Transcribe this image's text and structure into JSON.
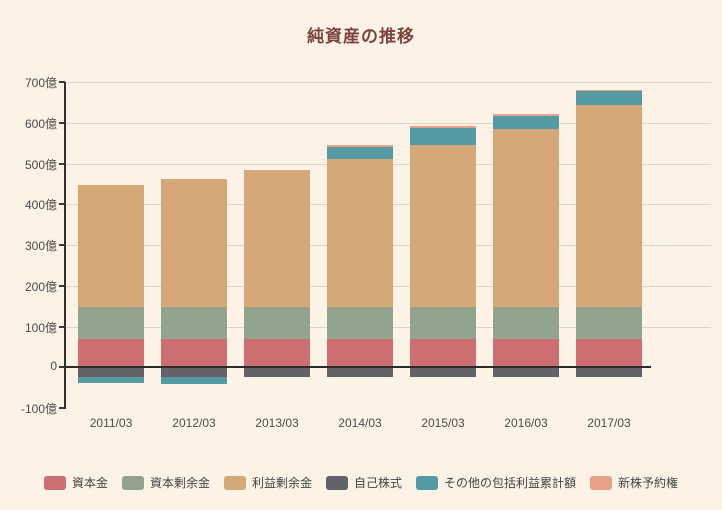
{
  "title": "純資産の推移",
  "palette": {
    "background": "#fcf3e6",
    "title_color": "#7d443c",
    "gridline": "#ddd5c8",
    "axis_line": "#2f2f2f",
    "zero_line": "#2b2b2b",
    "tick_mark": "#3a3a3a",
    "tick_label": "#4c4c4c",
    "legend_text": "#444444"
  },
  "chart_data": {
    "type": "bar",
    "stacked": true,
    "title": "純資産の推移",
    "unit": "億円",
    "categories": [
      "2011/03",
      "2012/03",
      "2013/03",
      "2014/03",
      "2015/03",
      "2016/03",
      "2017/03"
    ],
    "series": [
      {
        "key": "capital",
        "name": "資本金",
        "color": "#cd6e72",
        "values": [
          70,
          70,
          70,
          70,
          70,
          70,
          70
        ]
      },
      {
        "key": "capital-surplus",
        "name": "資本剰余金",
        "color": "#93a48e",
        "values": [
          78,
          78,
          78,
          78,
          78,
          78,
          78
        ]
      },
      {
        "key": "retained",
        "name": "利益剰余金",
        "color": "#d5a877",
        "values": [
          299,
          314,
          337,
          362,
          397,
          437,
          496
        ]
      },
      {
        "key": "treasury",
        "name": "自己株式",
        "color": "#626269",
        "values": [
          -23,
          -23,
          -25,
          -23,
          -24,
          -24,
          -24
        ]
      },
      {
        "key": "oci",
        "name": "その他の包括利益累計額",
        "color": "#549aa2",
        "values": [
          -16,
          -18,
          0,
          31,
          41,
          31,
          33
        ]
      },
      {
        "key": "rights",
        "name": "新株予約権",
        "color": "#e9a18a",
        "values": [
          0,
          0,
          0,
          4,
          6,
          5,
          4
        ]
      }
    ],
    "ylim": [
      -100,
      700
    ],
    "y_ticks": [
      {
        "label": "700億",
        "value": 700
      },
      {
        "label": "600億",
        "value": 600
      },
      {
        "label": "500億",
        "value": 500
      },
      {
        "label": "400億",
        "value": 400
      },
      {
        "label": "300億",
        "value": 300
      },
      {
        "label": "200億",
        "value": 200
      },
      {
        "label": "100億",
        "value": 100
      },
      {
        "label": "0",
        "value": 0
      },
      {
        "label": "-100億",
        "value": -100
      }
    ],
    "grid": true,
    "legend_position": "bottom"
  }
}
